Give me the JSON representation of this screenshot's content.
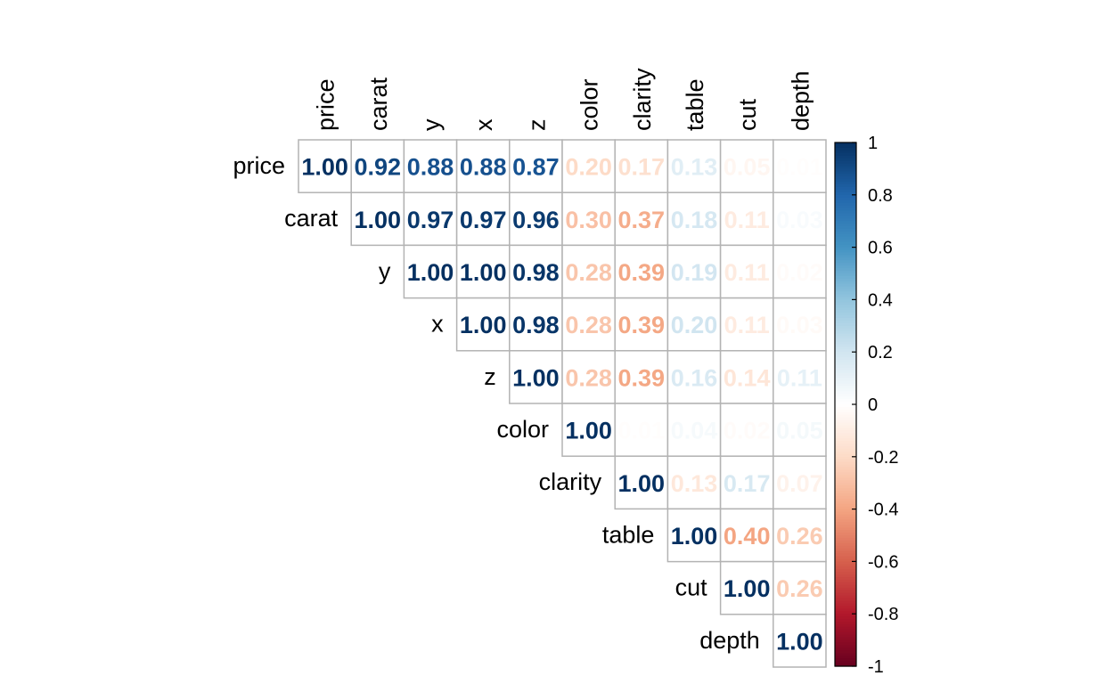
{
  "chart_data": {
    "type": "heatmap",
    "layout": "upper-triangle",
    "variables": [
      "price",
      "carat",
      "y",
      "x",
      "z",
      "color",
      "clarity",
      "table",
      "cut",
      "depth"
    ],
    "matrix": [
      [
        1.0,
        0.92,
        0.88,
        0.88,
        0.87,
        -0.2,
        -0.17,
        0.13,
        -0.05,
        -0.01
      ],
      [
        0.92,
        1.0,
        0.97,
        0.97,
        0.96,
        -0.3,
        -0.37,
        0.18,
        -0.11,
        0.03
      ],
      [
        0.88,
        0.97,
        1.0,
        1.0,
        0.98,
        -0.28,
        -0.39,
        0.19,
        -0.11,
        -0.02
      ],
      [
        0.88,
        0.97,
        1.0,
        1.0,
        0.98,
        -0.28,
        -0.39,
        0.2,
        -0.11,
        -0.03
      ],
      [
        0.87,
        0.96,
        0.98,
        0.98,
        1.0,
        -0.28,
        -0.39,
        0.16,
        -0.14,
        0.11
      ],
      [
        -0.2,
        -0.3,
        -0.28,
        -0.28,
        -0.28,
        1.0,
        -0.01,
        0.04,
        -0.02,
        0.05
      ],
      [
        -0.17,
        -0.37,
        -0.39,
        -0.39,
        -0.39,
        -0.01,
        1.0,
        -0.13,
        0.17,
        -0.07
      ],
      [
        0.13,
        0.18,
        0.19,
        0.2,
        0.16,
        0.04,
        -0.13,
        1.0,
        -0.4,
        -0.26
      ],
      [
        -0.05,
        -0.11,
        -0.11,
        -0.11,
        -0.14,
        -0.02,
        0.17,
        -0.4,
        1.0,
        -0.26
      ],
      [
        -0.01,
        0.03,
        -0.02,
        -0.03,
        0.11,
        0.05,
        -0.07,
        -0.26,
        -0.26,
        1.0
      ]
    ],
    "value_format": "2 decimals, shown as absolute value",
    "colorbar": {
      "range": [
        -1,
        1
      ],
      "ticks": [
        "1",
        "0.8",
        "0.6",
        "0.4",
        "0.2",
        "0",
        "-0.2",
        "-0.4",
        "-0.6",
        "-0.8",
        "-1"
      ],
      "placement": "right"
    },
    "palette": {
      "negative": [
        "#67001F",
        "#B2182B",
        "#D6604D",
        "#F4A582",
        "#FDDBC7",
        "#FFFFFF"
      ],
      "positive": [
        "#FFFFFF",
        "#D1E5F0",
        "#92C5DE",
        "#4393C3",
        "#2166AC",
        "#053061"
      ],
      "cell_border": "#B3B3B3",
      "colorbar_border": "#000000"
    },
    "grid": true
  }
}
